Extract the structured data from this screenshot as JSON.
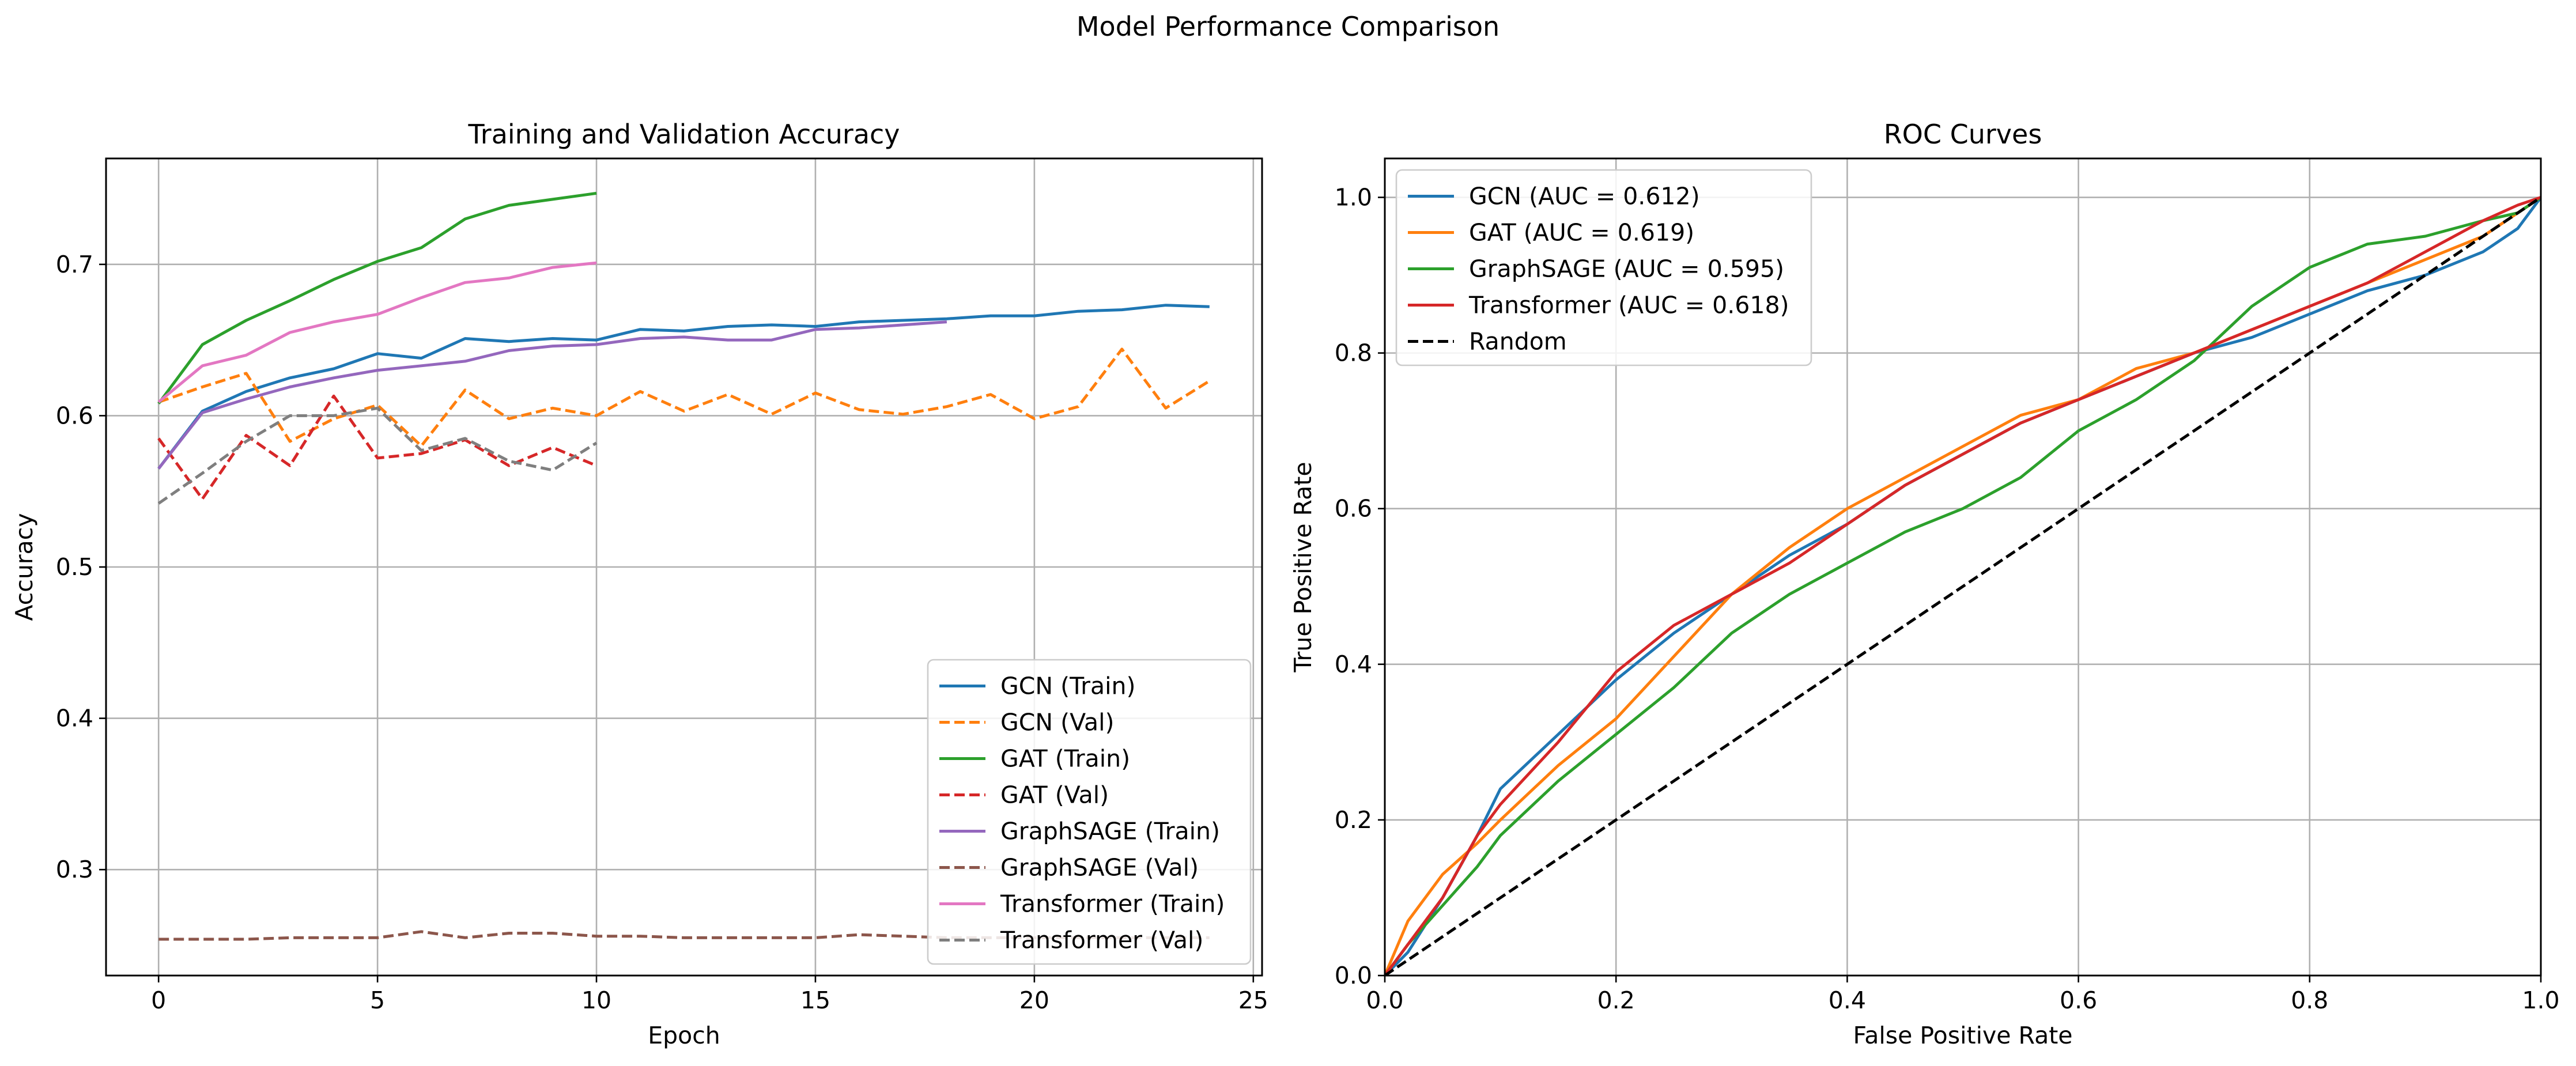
{
  "suptitle": "Model Performance Comparison",
  "chart_data": [
    {
      "type": "line",
      "title": "Training and Validation Accuracy",
      "xlabel": "Epoch",
      "ylabel": "Accuracy",
      "xlim": [
        -1.2,
        25.2
      ],
      "ylim": [
        0.23,
        0.77
      ],
      "xticks": [
        0,
        5,
        10,
        15,
        20,
        25
      ],
      "yticks": [
        0.3,
        0.4,
        0.5,
        0.6,
        0.7
      ],
      "grid": true,
      "legend_position": "lower-right",
      "series": [
        {
          "name": "GCN (Train)",
          "color": "#1f77b4",
          "dash": "solid",
          "x": [
            0,
            1,
            2,
            3,
            4,
            5,
            6,
            7,
            8,
            9,
            10,
            11,
            12,
            13,
            14,
            15,
            16,
            17,
            18,
            19,
            20,
            21,
            22,
            23,
            24
          ],
          "y": [
            0.565,
            0.603,
            0.616,
            0.625,
            0.631,
            0.641,
            0.638,
            0.651,
            0.649,
            0.651,
            0.65,
            0.657,
            0.656,
            0.659,
            0.66,
            0.659,
            0.662,
            0.663,
            0.664,
            0.666,
            0.666,
            0.669,
            0.67,
            0.673,
            0.672
          ]
        },
        {
          "name": "GCN (Val)",
          "color": "#ff7f0e",
          "dash": "dashed",
          "x": [
            0,
            1,
            2,
            3,
            4,
            5,
            6,
            7,
            8,
            9,
            10,
            11,
            12,
            13,
            14,
            15,
            16,
            17,
            18,
            19,
            20,
            21,
            22,
            23,
            24
          ],
          "y": [
            0.609,
            0.619,
            0.628,
            0.583,
            0.598,
            0.607,
            0.58,
            0.617,
            0.598,
            0.605,
            0.6,
            0.616,
            0.603,
            0.614,
            0.601,
            0.615,
            0.604,
            0.601,
            0.606,
            0.614,
            0.598,
            0.606,
            0.644,
            0.605,
            0.623
          ]
        },
        {
          "name": "GAT (Train)",
          "color": "#2ca02c",
          "dash": "solid",
          "x": [
            0,
            1,
            2,
            3,
            4,
            5,
            6,
            7,
            8,
            9,
            10
          ],
          "y": [
            0.608,
            0.647,
            0.663,
            0.676,
            0.69,
            0.702,
            0.711,
            0.73,
            0.739,
            0.743,
            0.747
          ]
        },
        {
          "name": "GAT (Val)",
          "color": "#d62728",
          "dash": "dashed",
          "x": [
            0,
            1,
            2,
            3,
            4,
            5,
            6,
            7,
            8,
            9,
            10
          ],
          "y": [
            0.585,
            0.545,
            0.587,
            0.567,
            0.613,
            0.572,
            0.575,
            0.584,
            0.567,
            0.579,
            0.567
          ]
        },
        {
          "name": "GraphSAGE (Train)",
          "color": "#9467bd",
          "dash": "solid",
          "x": [
            0,
            1,
            2,
            3,
            4,
            5,
            6,
            7,
            8,
            9,
            10,
            11,
            12,
            13,
            14,
            15,
            16,
            17,
            18
          ],
          "y": [
            0.565,
            0.602,
            0.611,
            0.619,
            0.625,
            0.63,
            0.633,
            0.636,
            0.643,
            0.646,
            0.647,
            0.651,
            0.652,
            0.65,
            0.65,
            0.657,
            0.658,
            0.66,
            0.662
          ]
        },
        {
          "name": "GraphSAGE (Val)",
          "color": "#8c564b",
          "dash": "dashed",
          "x": [
            0,
            1,
            2,
            3,
            4,
            5,
            6,
            7,
            8,
            9,
            10,
            11,
            12,
            13,
            14,
            15,
            16,
            17,
            18,
            19,
            20,
            21,
            22,
            23,
            24
          ],
          "y": [
            0.254,
            0.254,
            0.254,
            0.255,
            0.255,
            0.255,
            0.259,
            0.255,
            0.258,
            0.258,
            0.256,
            0.256,
            0.255,
            0.255,
            0.255,
            0.255,
            0.257,
            0.256,
            0.255,
            0.255,
            0.255,
            0.255,
            0.255,
            0.255,
            0.255
          ]
        },
        {
          "name": "Transformer (Train)",
          "color": "#e377c2",
          "dash": "solid",
          "x": [
            0,
            1,
            2,
            3,
            4,
            5,
            6,
            7,
            8,
            9,
            10
          ],
          "y": [
            0.609,
            0.633,
            0.64,
            0.655,
            0.662,
            0.667,
            0.678,
            0.688,
            0.691,
            0.698,
            0.701
          ]
        },
        {
          "name": "Transformer (Val)",
          "color": "#7f7f7f",
          "dash": "dashed",
          "x": [
            0,
            1,
            2,
            3,
            4,
            5,
            6,
            7,
            8,
            9,
            10
          ],
          "y": [
            0.542,
            0.562,
            0.583,
            0.6,
            0.6,
            0.605,
            0.577,
            0.585,
            0.57,
            0.564,
            0.582
          ]
        }
      ]
    },
    {
      "type": "line",
      "title": "ROC Curves",
      "xlabel": "False Positive Rate",
      "ylabel": "True Positive Rate",
      "xlim": [
        0,
        1
      ],
      "ylim": [
        0,
        1.05
      ],
      "xticks": [
        0.0,
        0.2,
        0.4,
        0.6,
        0.8,
        1.0
      ],
      "yticks": [
        0.0,
        0.2,
        0.4,
        0.6,
        0.8,
        1.0
      ],
      "grid": true,
      "legend_position": "upper-left",
      "series": [
        {
          "name": "GCN (AUC = 0.612)",
          "color": "#1f77b4",
          "dash": "solid",
          "x": [
            0,
            0.02,
            0.05,
            0.08,
            0.1,
            0.15,
            0.2,
            0.25,
            0.3,
            0.35,
            0.4,
            0.45,
            0.5,
            0.55,
            0.6,
            0.65,
            0.7,
            0.75,
            0.8,
            0.85,
            0.9,
            0.95,
            0.98,
            1.0
          ],
          "y": [
            0,
            0.03,
            0.1,
            0.18,
            0.24,
            0.31,
            0.38,
            0.44,
            0.49,
            0.54,
            0.58,
            0.63,
            0.67,
            0.71,
            0.74,
            0.77,
            0.8,
            0.82,
            0.85,
            0.88,
            0.9,
            0.93,
            0.96,
            1.0
          ]
        },
        {
          "name": "GAT (AUC = 0.619)",
          "color": "#ff7f0e",
          "dash": "solid",
          "x": [
            0,
            0.02,
            0.05,
            0.08,
            0.1,
            0.15,
            0.2,
            0.25,
            0.3,
            0.35,
            0.4,
            0.45,
            0.5,
            0.55,
            0.6,
            0.65,
            0.7,
            0.75,
            0.8,
            0.85,
            0.9,
            0.95,
            0.98,
            1.0
          ],
          "y": [
            0,
            0.07,
            0.13,
            0.17,
            0.2,
            0.27,
            0.33,
            0.41,
            0.49,
            0.55,
            0.6,
            0.64,
            0.68,
            0.72,
            0.74,
            0.78,
            0.8,
            0.83,
            0.86,
            0.89,
            0.92,
            0.95,
            0.98,
            1.0
          ]
        },
        {
          "name": "GraphSAGE (AUC = 0.595)",
          "color": "#2ca02c",
          "dash": "solid",
          "x": [
            0,
            0.02,
            0.05,
            0.08,
            0.1,
            0.15,
            0.2,
            0.25,
            0.3,
            0.35,
            0.4,
            0.45,
            0.5,
            0.55,
            0.6,
            0.65,
            0.7,
            0.75,
            0.8,
            0.85,
            0.9,
            0.95,
            0.98,
            1.0
          ],
          "y": [
            0,
            0.04,
            0.09,
            0.14,
            0.18,
            0.25,
            0.31,
            0.37,
            0.44,
            0.49,
            0.53,
            0.57,
            0.6,
            0.64,
            0.7,
            0.74,
            0.79,
            0.86,
            0.91,
            0.94,
            0.95,
            0.97,
            0.98,
            1.0
          ]
        },
        {
          "name": "Transformer (AUC = 0.618)",
          "color": "#d62728",
          "dash": "solid",
          "x": [
            0,
            0.02,
            0.05,
            0.08,
            0.1,
            0.15,
            0.2,
            0.25,
            0.3,
            0.35,
            0.4,
            0.45,
            0.5,
            0.55,
            0.6,
            0.65,
            0.7,
            0.75,
            0.8,
            0.85,
            0.9,
            0.95,
            0.98,
            1.0
          ],
          "y": [
            0,
            0.04,
            0.1,
            0.18,
            0.22,
            0.3,
            0.39,
            0.45,
            0.49,
            0.53,
            0.58,
            0.63,
            0.67,
            0.71,
            0.74,
            0.77,
            0.8,
            0.83,
            0.86,
            0.89,
            0.93,
            0.97,
            0.99,
            1.0
          ]
        },
        {
          "name": "Random",
          "color": "#000000",
          "dash": "dashed",
          "x": [
            0,
            1
          ],
          "y": [
            0,
            1
          ]
        }
      ]
    }
  ]
}
